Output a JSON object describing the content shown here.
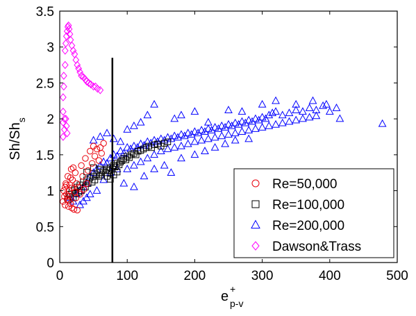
{
  "chart_data": {
    "type": "scatter",
    "title": "",
    "xlabel": {
      "main": "e",
      "sup": "+",
      "sub": "p-v"
    },
    "ylabel": {
      "main": "Sh/Sh",
      "sub": "s"
    },
    "xlim": [
      0,
      500
    ],
    "ylim": [
      0,
      3.5
    ],
    "xticks": [
      0,
      100,
      200,
      300,
      400,
      500
    ],
    "yticks": [
      0,
      0.5,
      1,
      1.5,
      2,
      2.5,
      3,
      3.5
    ],
    "ytick_labels": [
      "0",
      "0.5",
      "1",
      "1.5",
      "2",
      "2.5",
      "3",
      "3.5"
    ],
    "grid": false,
    "legend_position": "bottom-right",
    "vertical_line_x": 78,
    "series": [
      {
        "name": "Re=50,000",
        "marker": "circle",
        "color": "#e8000b",
        "points": [
          [
            5,
            0.85
          ],
          [
            6,
            1.0
          ],
          [
            7,
            0.92
          ],
          [
            8,
            1.05
          ],
          [
            8,
            0.8
          ],
          [
            9,
            1.1
          ],
          [
            10,
            0.95
          ],
          [
            11,
            0.88
          ],
          [
            12,
            1.2
          ],
          [
            13,
            0.78
          ],
          [
            14,
            1.0
          ],
          [
            15,
            1.08
          ],
          [
            16,
            0.82
          ],
          [
            17,
            1.3
          ],
          [
            18,
            0.76
          ],
          [
            19,
            1.15
          ],
          [
            20,
            1.32
          ],
          [
            21,
            0.74
          ],
          [
            22,
            0.98
          ],
          [
            23,
            1.25
          ],
          [
            24,
            0.9
          ],
          [
            25,
            1.1
          ],
          [
            26,
            0.73
          ],
          [
            28,
            1.05
          ],
          [
            30,
            0.95
          ],
          [
            32,
            1.35
          ],
          [
            34,
            1.2
          ],
          [
            36,
            1.02
          ],
          [
            38,
            1.45
          ],
          [
            40,
            1.1
          ],
          [
            42,
            1.28
          ],
          [
            45,
            1.55
          ],
          [
            48,
            1.38
          ],
          [
            50,
            1.62
          ],
          [
            52,
            1.48
          ],
          [
            55,
            1.58
          ],
          [
            58,
            1.42
          ],
          [
            60,
            1.6
          ],
          [
            62,
            1.52
          ],
          [
            65,
            1.66
          ],
          [
            10,
            1.08
          ],
          [
            12,
            0.92
          ],
          [
            14,
            0.86
          ],
          [
            16,
            1.18
          ],
          [
            18,
            1.04
          ]
        ]
      },
      {
        "name": "Re=100,000",
        "marker": "square",
        "color": "#000000",
        "points": [
          [
            12,
            0.88
          ],
          [
            14,
            0.95
          ],
          [
            16,
            0.92
          ],
          [
            18,
            1.0
          ],
          [
            20,
            0.9
          ],
          [
            22,
            1.02
          ],
          [
            24,
            0.96
          ],
          [
            26,
            1.05
          ],
          [
            28,
            0.98
          ],
          [
            30,
            1.08
          ],
          [
            32,
            1.0
          ],
          [
            35,
            1.12
          ],
          [
            38,
            1.05
          ],
          [
            40,
            1.15
          ],
          [
            42,
            1.1
          ],
          [
            45,
            1.18
          ],
          [
            48,
            1.12
          ],
          [
            50,
            1.2
          ],
          [
            52,
            1.15
          ],
          [
            55,
            1.22
          ],
          [
            58,
            1.2
          ],
          [
            60,
            1.25
          ],
          [
            62,
            1.22
          ],
          [
            65,
            1.28
          ],
          [
            68,
            1.25
          ],
          [
            70,
            1.3
          ],
          [
            72,
            1.28
          ],
          [
            75,
            1.32
          ],
          [
            78,
            1.3
          ],
          [
            80,
            1.35
          ],
          [
            82,
            1.33
          ],
          [
            85,
            1.38
          ],
          [
            88,
            1.36
          ],
          [
            90,
            1.4
          ],
          [
            92,
            1.42
          ],
          [
            95,
            1.45
          ],
          [
            98,
            1.43
          ],
          [
            100,
            1.48
          ],
          [
            103,
            1.46
          ],
          [
            106,
            1.5
          ],
          [
            110,
            1.52
          ],
          [
            113,
            1.5
          ],
          [
            116,
            1.55
          ],
          [
            120,
            1.56
          ],
          [
            124,
            1.58
          ],
          [
            128,
            1.6
          ],
          [
            132,
            1.62
          ],
          [
            136,
            1.6
          ],
          [
            140,
            1.64
          ],
          [
            145,
            1.65
          ],
          [
            150,
            1.62
          ],
          [
            155,
            1.66
          ],
          [
            160,
            1.68
          ],
          [
            70,
            1.2
          ],
          [
            75,
            1.16
          ],
          [
            80,
            1.22
          ],
          [
            85,
            1.26
          ],
          [
            60,
            1.3
          ],
          [
            50,
            1.32
          ],
          [
            40,
            1.26
          ]
        ]
      },
      {
        "name": "Re=200,000",
        "marker": "triangle",
        "color": "#0000ff",
        "points": [
          [
            15,
            0.9
          ],
          [
            20,
            0.85
          ],
          [
            25,
            0.95
          ],
          [
            30,
            1.0
          ],
          [
            35,
            1.05
          ],
          [
            40,
            1.1
          ],
          [
            45,
            1.2
          ],
          [
            50,
            1.25
          ],
          [
            55,
            1.3
          ],
          [
            60,
            1.35
          ],
          [
            65,
            1.4
          ],
          [
            70,
            1.38
          ],
          [
            75,
            1.45
          ],
          [
            80,
            1.5
          ],
          [
            85,
            1.48
          ],
          [
            90,
            1.55
          ],
          [
            95,
            1.52
          ],
          [
            100,
            1.6
          ],
          [
            105,
            1.58
          ],
          [
            110,
            1.62
          ],
          [
            115,
            1.6
          ],
          [
            120,
            1.65
          ],
          [
            125,
            1.63
          ],
          [
            130,
            1.68
          ],
          [
            135,
            1.66
          ],
          [
            140,
            1.7
          ],
          [
            145,
            1.68
          ],
          [
            150,
            1.72
          ],
          [
            155,
            1.7
          ],
          [
            160,
            1.74
          ],
          [
            165,
            1.72
          ],
          [
            170,
            1.76
          ],
          [
            175,
            1.74
          ],
          [
            180,
            1.78
          ],
          [
            185,
            1.76
          ],
          [
            190,
            1.8
          ],
          [
            195,
            1.78
          ],
          [
            200,
            1.82
          ],
          [
            205,
            1.8
          ],
          [
            210,
            1.84
          ],
          [
            215,
            1.82
          ],
          [
            220,
            1.86
          ],
          [
            225,
            1.84
          ],
          [
            230,
            1.88
          ],
          [
            235,
            1.86
          ],
          [
            240,
            1.9
          ],
          [
            245,
            1.88
          ],
          [
            250,
            1.92
          ],
          [
            255,
            1.9
          ],
          [
            260,
            1.94
          ],
          [
            265,
            1.92
          ],
          [
            270,
            1.96
          ],
          [
            275,
            1.94
          ],
          [
            280,
            1.98
          ],
          [
            285,
            1.96
          ],
          [
            290,
            2.0
          ],
          [
            295,
            1.98
          ],
          [
            300,
            2.02
          ],
          [
            305,
            2.0
          ],
          [
            310,
            2.05
          ],
          [
            315,
            2.08
          ],
          [
            320,
            2.1
          ],
          [
            330,
            2.05
          ],
          [
            340,
            2.08
          ],
          [
            350,
            2.12
          ],
          [
            360,
            2.1
          ],
          [
            370,
            2.15
          ],
          [
            380,
            2.12
          ],
          [
            390,
            2.18
          ],
          [
            400,
            2.1
          ],
          [
            415,
            2.0
          ],
          [
            478,
            1.93
          ],
          [
            100,
            1.3
          ],
          [
            110,
            1.35
          ],
          [
            120,
            1.4
          ],
          [
            130,
            1.45
          ],
          [
            140,
            1.5
          ],
          [
            150,
            1.55
          ],
          [
            160,
            1.58
          ],
          [
            170,
            1.6
          ],
          [
            180,
            1.62
          ],
          [
            190,
            1.65
          ],
          [
            200,
            1.68
          ],
          [
            210,
            1.7
          ],
          [
            220,
            1.72
          ],
          [
            230,
            1.74
          ],
          [
            240,
            1.76
          ],
          [
            250,
            1.78
          ],
          [
            260,
            1.8
          ],
          [
            270,
            1.82
          ],
          [
            280,
            1.84
          ],
          [
            290,
            1.86
          ],
          [
            300,
            1.88
          ],
          [
            310,
            1.9
          ],
          [
            320,
            1.92
          ],
          [
            330,
            1.94
          ],
          [
            340,
            1.96
          ],
          [
            350,
            1.98
          ],
          [
            360,
            2.0
          ],
          [
            370,
            2.02
          ],
          [
            380,
            2.04
          ],
          [
            100,
            1.85
          ],
          [
            110,
            1.9
          ],
          [
            120,
            1.95
          ],
          [
            130,
            2.05
          ],
          [
            140,
            2.2
          ],
          [
            170,
            2.0
          ],
          [
            180,
            2.05
          ],
          [
            200,
            2.1
          ],
          [
            220,
            1.95
          ],
          [
            250,
            2.12
          ],
          [
            270,
            2.1
          ],
          [
            300,
            2.2
          ],
          [
            320,
            2.25
          ],
          [
            350,
            2.2
          ],
          [
            375,
            2.25
          ],
          [
            395,
            2.2
          ],
          [
            410,
            2.15
          ],
          [
            50,
            1.7
          ],
          [
            60,
            1.75
          ],
          [
            70,
            1.8
          ],
          [
            80,
            1.72
          ],
          [
            90,
            1.68
          ],
          [
            95,
            1.1
          ],
          [
            110,
            1.05
          ],
          [
            125,
            1.2
          ],
          [
            140,
            1.3
          ],
          [
            155,
            1.35
          ],
          [
            165,
            1.25
          ],
          [
            180,
            1.45
          ],
          [
            200,
            1.5
          ],
          [
            215,
            1.55
          ],
          [
            230,
            1.6
          ],
          [
            245,
            1.65
          ],
          [
            260,
            1.7
          ],
          [
            280,
            1.72
          ],
          [
            30,
            0.8
          ],
          [
            35,
            0.85
          ],
          [
            40,
            0.9
          ],
          [
            45,
            0.95
          ],
          [
            55,
            1.0
          ],
          [
            65,
            1.15
          ],
          [
            75,
            1.25
          ],
          [
            85,
            1.3
          ]
        ]
      },
      {
        "name": "Dawson&Trass",
        "marker": "diamond",
        "color": "#ff00ff",
        "points": [
          [
            5,
            1.75
          ],
          [
            5,
            1.95
          ],
          [
            5,
            2.1
          ],
          [
            5,
            2.3
          ],
          [
            6,
            2.45
          ],
          [
            6,
            2.6
          ],
          [
            7,
            1.85
          ],
          [
            7,
            2.0
          ],
          [
            8,
            2.75
          ],
          [
            8,
            2.95
          ],
          [
            9,
            3.05
          ],
          [
            10,
            3.15
          ],
          [
            11,
            3.22
          ],
          [
            12,
            3.28
          ],
          [
            13,
            3.3
          ],
          [
            14,
            3.25
          ],
          [
            15,
            3.18
          ],
          [
            16,
            3.1
          ],
          [
            18,
            3.02
          ],
          [
            20,
            2.95
          ],
          [
            22,
            2.9
          ],
          [
            24,
            2.82
          ],
          [
            26,
            2.75
          ],
          [
            28,
            2.7
          ],
          [
            30,
            2.65
          ],
          [
            32,
            2.6
          ],
          [
            35,
            2.58
          ],
          [
            38,
            2.55
          ],
          [
            40,
            2.52
          ],
          [
            43,
            2.5
          ],
          [
            46,
            2.48
          ],
          [
            50,
            2.45
          ],
          [
            53,
            2.45
          ],
          [
            56,
            2.42
          ],
          [
            60,
            2.4
          ],
          [
            9,
            2.0
          ],
          [
            10,
            1.9
          ],
          [
            11,
            1.8
          ]
        ]
      }
    ]
  }
}
